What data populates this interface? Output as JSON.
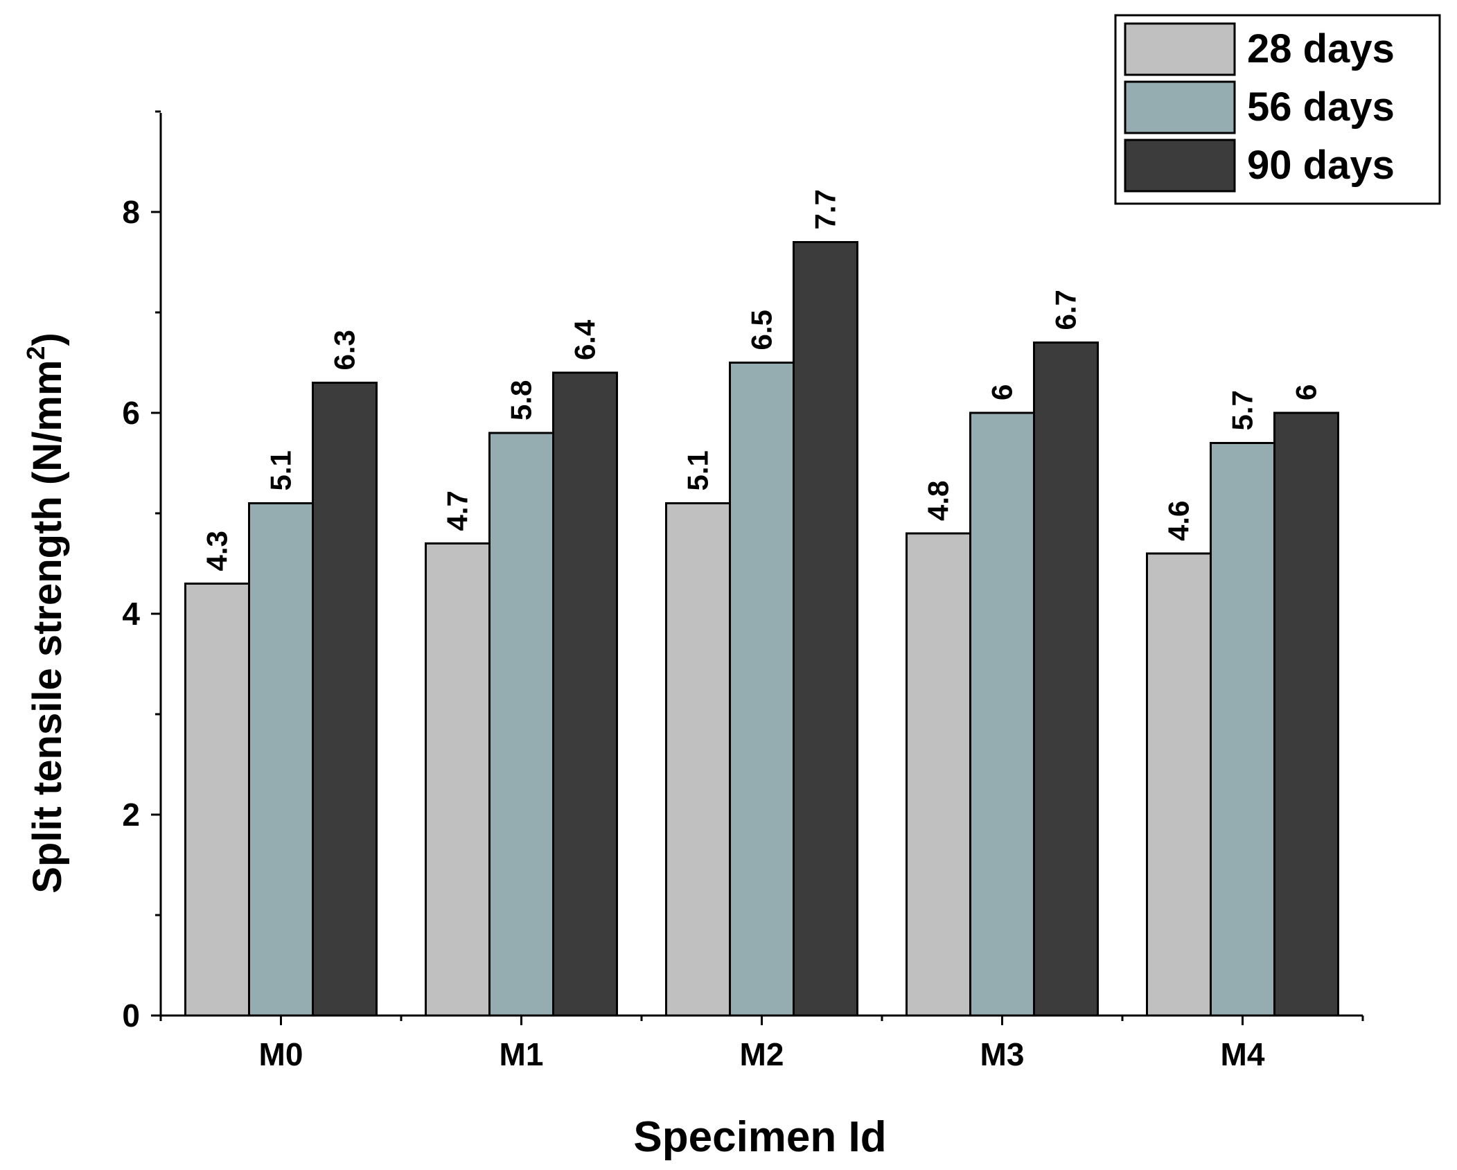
{
  "chart_data": {
    "type": "bar",
    "title": "",
    "xlabel": "Specimen Id",
    "ylabel": "Split tensile strength (N/mm",
    "ylabel_superscript": "2",
    "ylabel_close": ")",
    "ylim": [
      0,
      9
    ],
    "yticks": [
      0,
      2,
      4,
      6,
      8
    ],
    "categories": [
      "M0",
      "M1",
      "M2",
      "M3",
      "M4"
    ],
    "series": [
      {
        "name": "28 days",
        "color": "#c0c0c0",
        "values": [
          4.3,
          4.7,
          5.1,
          4.8,
          4.6
        ],
        "labels": [
          "4.3",
          "4.7",
          "5.1",
          "4.8",
          "4.6"
        ]
      },
      {
        "name": "56 days",
        "color": "#95adb0",
        "values": [
          5.1,
          5.8,
          6.5,
          6.0,
          5.7
        ],
        "labels": [
          "5.1",
          "5.8",
          "6.5",
          "6",
          "5.7"
        ]
      },
      {
        "name": "90 days",
        "color": "#3c3c3c",
        "values": [
          6.3,
          6.4,
          7.7,
          6.7,
          6.0
        ],
        "labels": [
          "6.3",
          "6.4",
          "7.7",
          "6.7",
          "6"
        ]
      }
    ],
    "legend_position": "top-right",
    "grid": false
  }
}
